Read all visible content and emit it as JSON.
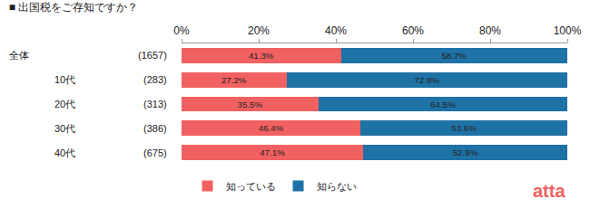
{
  "chart_data": {
    "type": "bar",
    "title": "■ 出国税をご存知ですか？",
    "orientation": "horizontal",
    "stacked": true,
    "data_labels": true,
    "legend": "bottom",
    "categories": [
      "全体",
      "10代",
      "20代",
      "30代",
      "40代"
    ],
    "sample_sizes": [
      1657,
      283,
      313,
      386,
      675
    ],
    "sample_size_labels": [
      "(1657)",
      "(283)",
      "(313)",
      "(386)",
      "(675)"
    ],
    "series": [
      {
        "name": "知っている",
        "color": "#f26161",
        "values": [
          41.3,
          27.2,
          35.5,
          46.4,
          47.1
        ],
        "value_labels": [
          "41.3%",
          "27.2%",
          "35.5%",
          "46.4%",
          "47.1%"
        ]
      },
      {
        "name": "知らない",
        "color": "#1f72a6",
        "values": [
          58.7,
          72.8,
          64.5,
          53.6,
          52.9
        ],
        "value_labels": [
          "58.7%",
          "72.8%",
          "64.5%",
          "53.6%",
          "52.9%"
        ]
      }
    ],
    "xlim": [
      0,
      100
    ],
    "xticks": [
      {
        "value": 0,
        "label": "0%"
      },
      {
        "value": 20,
        "label": "20%"
      },
      {
        "value": 40,
        "label": "40%"
      },
      {
        "value": 60,
        "label": "60%"
      },
      {
        "value": 80,
        "label": "80%"
      },
      {
        "value": 100,
        "label": "100%"
      }
    ],
    "logo": "atta"
  }
}
